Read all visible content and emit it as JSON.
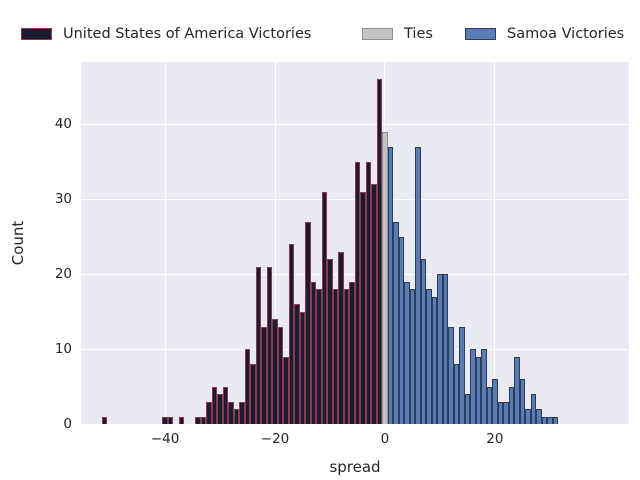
{
  "figure": {
    "background": "#ffffff",
    "axes_background": "#eaeaf2",
    "grid_color": "#ffffff",
    "text_color": "#262626"
  },
  "legend": {
    "items": [
      {
        "label": "United States of America Victories",
        "fill": "#1b1b32",
        "edge": "#8c3a4e",
        "x": 21
      },
      {
        "label": "Ties",
        "fill": "#c3c3c3",
        "edge": "#8f8f8f",
        "x": 362
      },
      {
        "label": "Samoa Victories",
        "fill": "#5a7cb3",
        "edge": "#2b3c63",
        "x": 465
      }
    ]
  },
  "chart_data": {
    "type": "bar",
    "subtype": "histogram",
    "title": "",
    "xlabel": "spread",
    "ylabel": "Count",
    "x_ticks": [
      -40,
      -20,
      0,
      20
    ],
    "x_tick_labels": [
      "−40",
      "−20",
      "0",
      "20"
    ],
    "y_ticks": [
      0,
      10,
      20,
      30,
      40
    ],
    "y_tick_labels": [
      "0",
      "10",
      "20",
      "30",
      "40"
    ],
    "xlim": [
      -55.3,
      44.4
    ],
    "ylim": [
      0,
      48.3
    ],
    "bin_width": 1,
    "grid": true,
    "legend_position": "top",
    "series": [
      {
        "name": "United States of America Victories",
        "fill": "#1b1b32",
        "edge": "#8c3a4e",
        "x": [
          -51,
          -40,
          -39,
          -37,
          -34,
          -33,
          -32,
          -31,
          -30,
          -29,
          -28,
          -27,
          -26,
          -25,
          -24,
          -23,
          -22,
          -21,
          -20,
          -19,
          -18,
          -17,
          -16,
          -15,
          -14,
          -13,
          -12,
          -11,
          -10,
          -9,
          -8,
          -7,
          -6,
          -5,
          -4,
          -3,
          -2,
          -1
        ],
        "counts": [
          1,
          1,
          1,
          1,
          1,
          1,
          3,
          5,
          4,
          5,
          3,
          2,
          3,
          10,
          8,
          21,
          13,
          21,
          14,
          13,
          9,
          24,
          16,
          15,
          27,
          19,
          18,
          31,
          22,
          18,
          23,
          18,
          19,
          35,
          31,
          35,
          32,
          46
        ]
      },
      {
        "name": "Ties",
        "fill": "#c3c3c3",
        "edge": "#8f8f8f",
        "x": [
          0
        ],
        "counts": [
          39
        ]
      },
      {
        "name": "Samoa Victories",
        "fill": "#5a7cb3",
        "edge": "#2b3c63",
        "x": [
          1,
          2,
          3,
          4,
          5,
          6,
          7,
          8,
          9,
          10,
          11,
          12,
          13,
          14,
          15,
          16,
          17,
          18,
          19,
          20,
          21,
          22,
          23,
          24,
          25,
          26,
          27,
          28,
          29,
          30,
          31
        ],
        "counts": [
          37,
          27,
          25,
          19,
          18,
          37,
          22,
          18,
          17,
          20,
          20,
          13,
          8,
          13,
          4,
          10,
          9,
          10,
          5,
          6,
          3,
          3,
          5,
          9,
          6,
          2,
          4,
          2,
          1,
          1,
          1
        ]
      }
    ]
  }
}
